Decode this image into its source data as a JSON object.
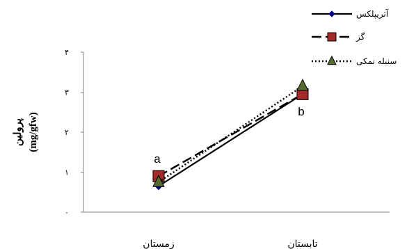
{
  "chart_data": {
    "type": "line",
    "categories": [
      "زمستان",
      "تابستان"
    ],
    "ylabel_line1": "پرولین",
    "ylabel_line2": "(mg/gfw)",
    "ylim": [
      0,
      4
    ],
    "yticks": [
      "۰",
      "۱",
      "۲",
      "۳",
      "۴"
    ],
    "grid": false,
    "legend_position": "top-right",
    "series": [
      {
        "name": "آتریپلکس",
        "values": [
          0.65,
          2.95
        ],
        "style": "solid",
        "marker": "diamond",
        "color": "#000000",
        "marker_color": "#000080"
      },
      {
        "name": "گز",
        "values": [
          0.9,
          2.95
        ],
        "style": "dashed",
        "marker": "square",
        "color": "#000000",
        "marker_color": "#a52a2a"
      },
      {
        "name": "سنبله نمکی",
        "values": [
          0.75,
          3.15
        ],
        "style": "dotted",
        "marker": "triangle",
        "color": "#000000",
        "marker_color": "#556b2f"
      }
    ],
    "annotations": [
      {
        "text": "a",
        "category": 0,
        "y": 1.25
      },
      {
        "text": "b",
        "category": 1,
        "y": 1.55
      }
    ]
  }
}
